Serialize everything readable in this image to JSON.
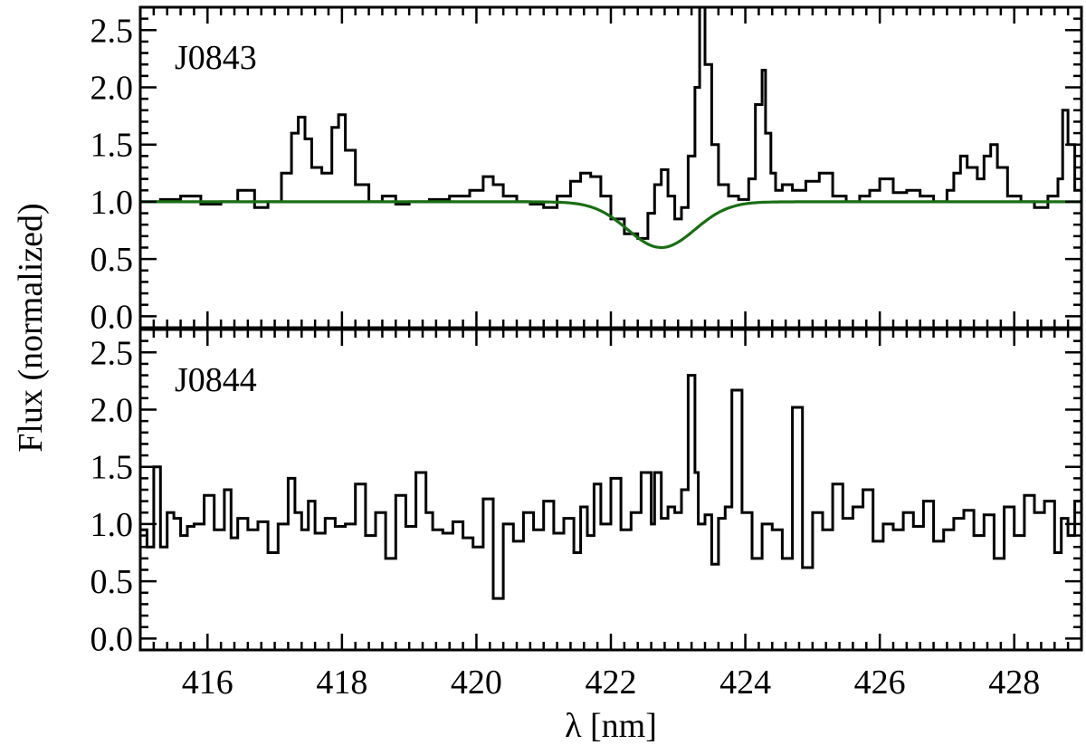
{
  "chart_data": [
    {
      "type": "line",
      "panel_label": "J0843",
      "xlim": [
        415,
        429
      ],
      "ylim": [
        -0.1,
        2.7
      ],
      "x_ticks": [
        416,
        418,
        420,
        422,
        424,
        426,
        428
      ],
      "y_ticks": [
        0.0,
        0.5,
        1.0,
        1.5,
        2.0,
        2.5
      ],
      "y_tick_labels": [
        "0.0",
        "0.5",
        "1.0",
        "1.5",
        "2.0",
        "2.5"
      ],
      "series": [
        {
          "style": "step",
          "color": "#000000",
          "x": [
            415.0,
            415.3,
            415.6,
            415.9,
            416.2,
            416.45,
            416.7,
            416.9,
            417.1,
            417.25,
            417.35,
            417.45,
            417.55,
            417.7,
            417.85,
            417.95,
            418.05,
            418.2,
            418.4,
            418.6,
            418.8,
            419.0,
            419.3,
            419.6,
            419.9,
            420.1,
            420.25,
            420.4,
            420.6,
            420.8,
            421.0,
            421.2,
            421.4,
            421.55,
            421.7,
            421.85,
            422.0,
            422.2,
            422.4,
            422.55,
            422.65,
            422.75,
            422.85,
            422.95,
            423.05,
            423.15,
            423.25,
            423.32,
            423.4,
            423.5,
            423.6,
            423.75,
            423.9,
            424.05,
            424.15,
            424.25,
            424.3,
            424.38,
            424.45,
            424.55,
            424.7,
            424.9,
            425.1,
            425.3,
            425.5,
            425.7,
            425.85,
            426.0,
            426.2,
            426.4,
            426.6,
            426.8,
            427.0,
            427.1,
            427.2,
            427.3,
            427.45,
            427.55,
            427.65,
            427.75,
            427.9,
            428.1,
            428.3,
            428.5,
            428.65,
            428.72,
            428.8,
            428.9,
            429.0
          ],
          "y": [
            1.0,
            1.02,
            1.05,
            0.98,
            1.0,
            1.1,
            0.95,
            1.0,
            1.25,
            1.6,
            1.74,
            1.55,
            1.3,
            1.25,
            1.65,
            1.76,
            1.45,
            1.15,
            1.0,
            1.05,
            0.98,
            1.0,
            1.02,
            1.05,
            1.1,
            1.22,
            1.15,
            1.05,
            1.0,
            0.98,
            0.95,
            1.05,
            1.18,
            1.25,
            1.22,
            1.05,
            0.85,
            0.72,
            0.68,
            0.9,
            1.15,
            1.28,
            1.05,
            0.85,
            0.95,
            1.4,
            2.0,
            2.7,
            2.2,
            1.5,
            1.15,
            1.05,
            1.02,
            1.2,
            1.85,
            2.15,
            1.6,
            1.25,
            1.1,
            1.15,
            1.1,
            1.18,
            1.25,
            1.05,
            1.0,
            1.05,
            1.1,
            1.2,
            1.08,
            1.1,
            1.05,
            1.0,
            1.1,
            1.25,
            1.4,
            1.3,
            1.2,
            1.4,
            1.5,
            1.3,
            1.05,
            1.0,
            0.95,
            1.05,
            1.2,
            1.8,
            1.5,
            1.1,
            1.0
          ]
        },
        {
          "style": "gaussian-model",
          "color": "#1a6e14",
          "continuum": 1.0,
          "center": 422.75,
          "depth": 0.4,
          "sigma": 0.5
        }
      ]
    },
    {
      "type": "line",
      "panel_label": "J0844",
      "xlim": [
        415,
        429
      ],
      "ylim": [
        -0.1,
        2.7
      ],
      "x_ticks": [
        416,
        418,
        420,
        422,
        424,
        426,
        428
      ],
      "x_tick_labels": [
        "416",
        "418",
        "420",
        "422",
        "424",
        "426",
        "428"
      ],
      "y_ticks": [
        0.0,
        0.5,
        1.0,
        1.5,
        2.0,
        2.5
      ],
      "y_tick_labels": [
        "0.0",
        "0.5",
        "1.0",
        "1.5",
        "2.0",
        "2.5"
      ],
      "xlabel": "λ [nm]",
      "series": [
        {
          "style": "step",
          "color": "#000000",
          "x": [
            415.0,
            415.1,
            415.2,
            415.3,
            415.4,
            415.5,
            415.6,
            415.7,
            415.8,
            415.95,
            416.1,
            416.25,
            416.35,
            416.45,
            416.6,
            416.75,
            416.9,
            417.05,
            417.2,
            417.3,
            417.4,
            417.5,
            417.6,
            417.75,
            417.9,
            418.05,
            418.2,
            418.35,
            418.5,
            418.65,
            418.8,
            418.95,
            419.1,
            419.25,
            419.35,
            419.5,
            419.65,
            419.8,
            419.95,
            420.1,
            420.25,
            420.4,
            420.55,
            420.7,
            420.85,
            421.0,
            421.15,
            421.3,
            421.45,
            421.55,
            421.65,
            421.75,
            421.85,
            422.0,
            422.15,
            422.3,
            422.45,
            422.6,
            422.65,
            422.75,
            422.85,
            422.95,
            423.05,
            423.15,
            423.25,
            423.3,
            423.4,
            423.5,
            423.6,
            423.7,
            423.8,
            423.95,
            424.1,
            424.25,
            424.4,
            424.55,
            424.7,
            424.85,
            425.0,
            425.15,
            425.3,
            425.45,
            425.6,
            425.75,
            425.9,
            426.05,
            426.2,
            426.35,
            426.5,
            426.65,
            426.8,
            426.95,
            427.1,
            427.25,
            427.4,
            427.55,
            427.7,
            427.85,
            428.0,
            428.15,
            428.3,
            428.45,
            428.6,
            428.7,
            428.8,
            428.9,
            429.0
          ],
          "y": [
            0.95,
            0.8,
            1.5,
            0.8,
            1.1,
            1.05,
            0.9,
            0.98,
            1.0,
            1.25,
            0.95,
            1.3,
            0.88,
            1.05,
            0.95,
            1.02,
            0.75,
            1.0,
            1.4,
            1.1,
            0.95,
            1.2,
            0.92,
            1.05,
            0.98,
            1.0,
            1.35,
            0.9,
            1.1,
            0.7,
            1.25,
            0.98,
            1.45,
            1.1,
            0.95,
            0.92,
            1.02,
            0.88,
            0.8,
            1.22,
            0.35,
            1.0,
            0.85,
            1.1,
            0.95,
            1.2,
            0.92,
            1.05,
            0.75,
            1.15,
            0.9,
            1.35,
            1.0,
            1.4,
            0.95,
            1.1,
            1.45,
            1.0,
            1.45,
            1.05,
            1.15,
            1.1,
            1.3,
            2.3,
            1.45,
            1.0,
            1.08,
            0.65,
            1.05,
            1.15,
            2.17,
            1.1,
            0.7,
            1.0,
            0.95,
            0.7,
            2.02,
            0.62,
            1.1,
            0.95,
            1.35,
            1.05,
            1.15,
            1.3,
            0.85,
            1.0,
            0.95,
            1.1,
            0.98,
            1.2,
            0.85,
            0.95,
            1.05,
            1.12,
            0.9,
            1.08,
            0.7,
            1.15,
            0.9,
            1.25,
            1.1,
            1.2,
            0.75,
            1.05,
            0.9,
            1.2,
            0.85
          ]
        }
      ]
    }
  ],
  "shared": {
    "ylabel": "Flux (normalized)"
  }
}
